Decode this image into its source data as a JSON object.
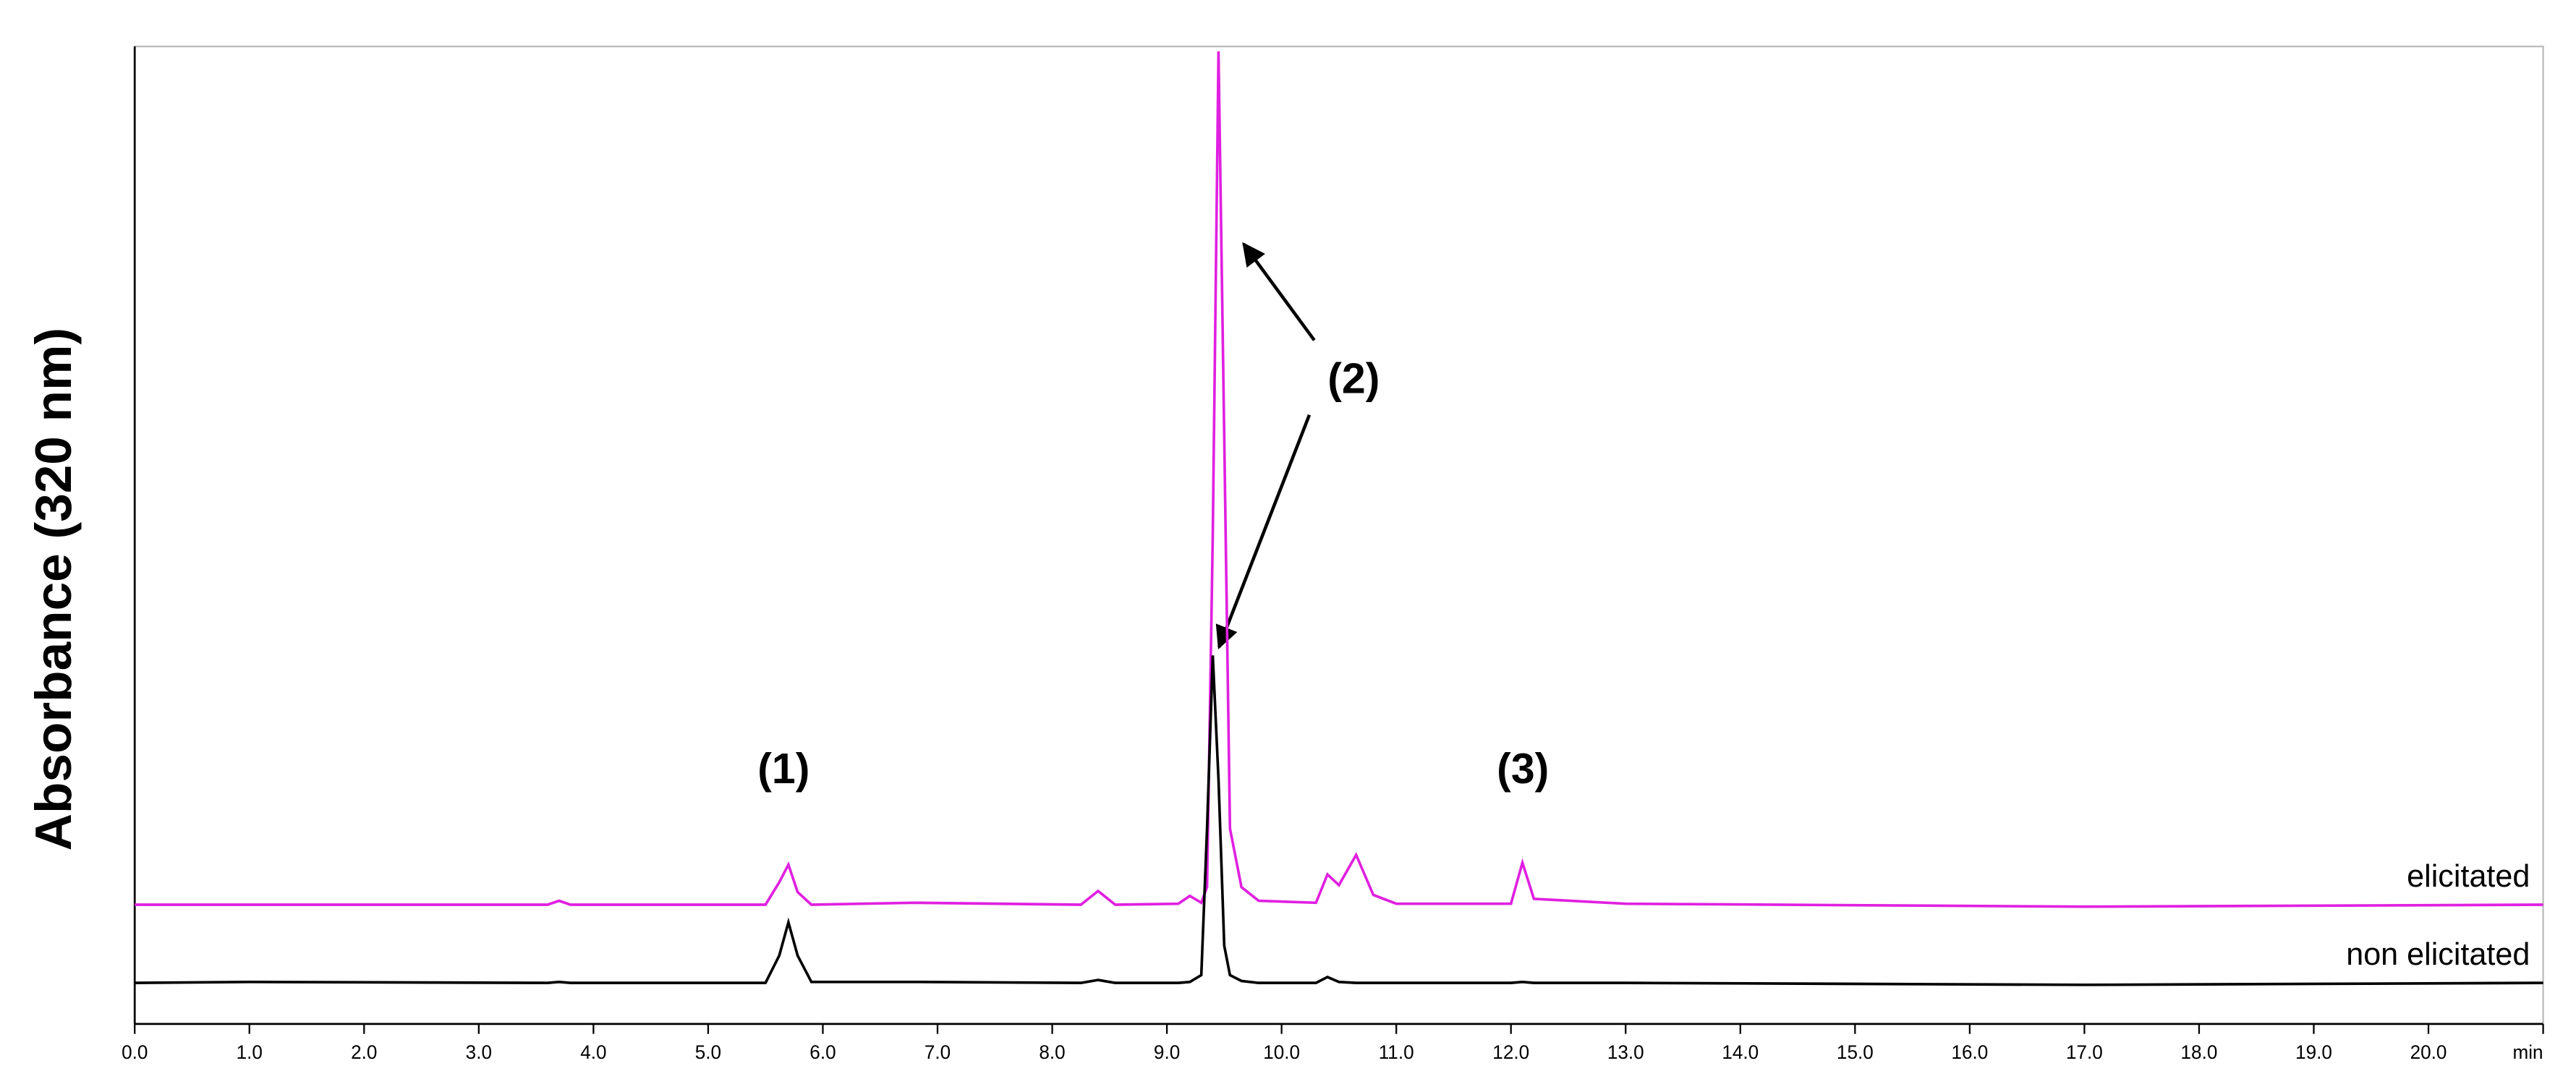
{
  "chart_data": {
    "type": "line",
    "y_label": "Absorbance (320 nm)",
    "annotations": [
      "(1)",
      "(2)",
      "(3)"
    ],
    "x": [
      0,
      1.0,
      3.6,
      3.7,
      3.8,
      5.5,
      5.62,
      5.7,
      5.78,
      5.9,
      6.8,
      8.25,
      8.4,
      8.55,
      9.1,
      9.2,
      9.3,
      9.35,
      9.4,
      9.45,
      9.5,
      9.55,
      9.65,
      9.8,
      10.3,
      10.4,
      10.5,
      10.65,
      10.8,
      11.0,
      12.0,
      12.1,
      12.2,
      13.0,
      17.0,
      21.0
    ],
    "series": [
      {
        "name": "elicitated",
        "color": "#e020e0",
        "values": [
          12.2,
          12.2,
          12.2,
          12.6,
          12.2,
          12.2,
          14.5,
          16.3,
          13.5,
          12.2,
          12.4,
          12.2,
          13.6,
          12.2,
          12.3,
          13.1,
          12.4,
          14,
          50,
          99.5,
          60,
          20,
          14,
          12.6,
          12.4,
          15.3,
          14.2,
          17.3,
          13.2,
          12.3,
          12.3,
          16.5,
          12.8,
          12.3,
          12.0,
          12.2
        ]
      },
      {
        "name": "non elicitated",
        "color": "#000000",
        "values": [
          4.2,
          4.3,
          4.2,
          4.3,
          4.2,
          4.2,
          7,
          10.4,
          7,
          4.3,
          4.3,
          4.2,
          4.5,
          4.2,
          4.2,
          4.3,
          5,
          20,
          37.7,
          25,
          8,
          5,
          4.4,
          4.2,
          4.2,
          4.8,
          4.3,
          4.2,
          4.2,
          4.2,
          4.2,
          4.3,
          4.2,
          4.2,
          4.0,
          4.2
        ]
      }
    ],
    "xlim": [
      0,
      21
    ],
    "ylim": [
      0,
      100
    ],
    "xticks": [
      {
        "value": 0,
        "label": "0.0"
      },
      {
        "value": 1,
        "label": "1.0"
      },
      {
        "value": 2,
        "label": "2.0"
      },
      {
        "value": 3,
        "label": "3.0"
      },
      {
        "value": 4,
        "label": "4.0"
      },
      {
        "value": 5,
        "label": "5.0"
      },
      {
        "value": 6,
        "label": "6.0"
      },
      {
        "value": 7,
        "label": "7.0"
      },
      {
        "value": 8,
        "label": "8.0"
      },
      {
        "value": 9,
        "label": "9.0"
      },
      {
        "value": 10,
        "label": "10.0"
      },
      {
        "value": 11,
        "label": "11.0"
      },
      {
        "value": 12,
        "label": "12.0"
      },
      {
        "value": 13,
        "label": "13.0"
      },
      {
        "value": 14,
        "label": "14.0"
      },
      {
        "value": 15,
        "label": "15.0"
      },
      {
        "value": 16,
        "label": "16.0"
      },
      {
        "value": 17,
        "label": "17.0"
      },
      {
        "value": 18,
        "label": "18.0"
      },
      {
        "value": 19,
        "label": "19.0"
      },
      {
        "value": 20,
        "label": "20.0"
      },
      {
        "value": 21,
        "label": "min"
      }
    ]
  }
}
